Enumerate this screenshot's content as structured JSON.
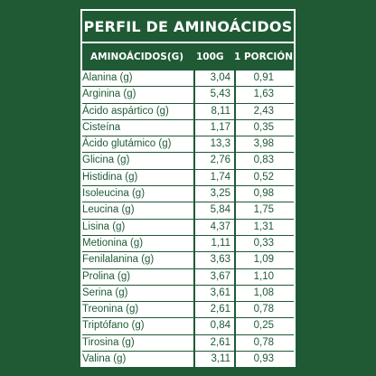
{
  "title": "PERFIL DE AMINOÁCIDOS",
  "headers": {
    "name": "AMINOÁCIDOS(G)",
    "per100": "100G",
    "portion": "1 PORCIÓN"
  },
  "rows": [
    {
      "name": "Alanina (g)",
      "per100": "3,04",
      "portion": "0,91"
    },
    {
      "name": "Arginina (g)",
      "per100": "5,43",
      "portion": "1,63"
    },
    {
      "name": "Ácido aspártico (g)",
      "per100": "8,11",
      "portion": "2,43"
    },
    {
      "name": "Cisteína",
      "per100": "1,17",
      "portion": "0,35"
    },
    {
      "name": "Ácido glutámico (g)",
      "per100": "13,3",
      "portion": "3,98"
    },
    {
      "name": "Glicina (g)",
      "per100": "2,76",
      "portion": "0,83"
    },
    {
      "name": "Histidina (g)",
      "per100": "1,74",
      "portion": "0,52"
    },
    {
      "name": "Isoleucina (g)",
      "per100": "3,25",
      "portion": "0,98"
    },
    {
      "name": "Leucina (g)",
      "per100": "5,84",
      "portion": "1,75"
    },
    {
      "name": "Lisina (g)",
      "per100": "4,37",
      "portion": "1,31"
    },
    {
      "name": "Metionina (g)",
      "per100": "1,11",
      "portion": "0,33"
    },
    {
      "name": "Fenilalanina (g)",
      "per100": "3,63",
      "portion": "1,09"
    },
    {
      "name": "Prolina (g)",
      "per100": "3,67",
      "portion": "1,10"
    },
    {
      "name": "Serina (g)",
      "per100": "3,61",
      "portion": "1,08"
    },
    {
      "name": "Treonina (g)",
      "per100": "2,61",
      "portion": "0,78"
    },
    {
      "name": "Triptófano (g)",
      "per100": "0,84",
      "portion": "0,25"
    },
    {
      "name": "Tirosina (g)",
      "per100": "2,61",
      "portion": "0,78"
    },
    {
      "name": "Valina (g)",
      "per100": "3,11",
      "portion": "0,93"
    }
  ],
  "colors": {
    "background": "#1f5a35",
    "table_bg": "#ffffff",
    "text": "#1f5a35"
  }
}
